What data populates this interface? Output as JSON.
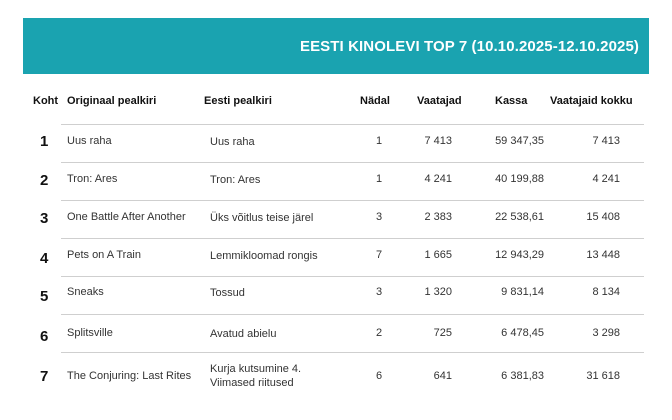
{
  "banner": {
    "title": "EESTI KINOLEVI TOP 7 (10.10.2025-12.10.2025)",
    "color": "#1aa3b0"
  },
  "table": {
    "headers": [
      "Koht",
      "Originaal pealkiri",
      "Eesti pealkiri",
      "Nädal",
      "Vaatajad",
      "Kassa",
      "Vaatajaid kokku"
    ],
    "rows": [
      {
        "rank": "1",
        "original": "Uus raha",
        "estonian": "Uus raha",
        "week": "1",
        "viewers": "7 413",
        "revenue": "59 347,35",
        "total": "7 413"
      },
      {
        "rank": "2",
        "original": "Tron: Ares",
        "estonian": "Tron: Ares",
        "week": "1",
        "viewers": "4 241",
        "revenue": "40 199,88",
        "total": "4 241"
      },
      {
        "rank": "3",
        "original": "One Battle After Another",
        "estonian": "Üks võitlus teise järel",
        "week": "3",
        "viewers": "2 383",
        "revenue": "22 538,61",
        "total": "15 408"
      },
      {
        "rank": "4",
        "original": "Pets on A Train",
        "estonian": "Lemmikloomad rongis",
        "week": "7",
        "viewers": "1 665",
        "revenue": "12 943,29",
        "total": "13 448"
      },
      {
        "rank": "5",
        "original": "Sneaks",
        "estonian": "Tossud",
        "week": "3",
        "viewers": "1 320",
        "revenue": "9 831,14",
        "total": "8 134"
      },
      {
        "rank": "6",
        "original": "Splitsville",
        "estonian": "Avatud abielu",
        "week": "2",
        "viewers": "725",
        "revenue": "6 478,45",
        "total": "3 298"
      },
      {
        "rank": "7",
        "original": "The Conjuring: Last Rites",
        "estonian_line1": "Kurja kutsumine 4.",
        "estonian_line2": "Viimased riitused",
        "week": "6",
        "viewers": "641",
        "revenue": "6 381,83",
        "total": "31 618"
      }
    ]
  }
}
